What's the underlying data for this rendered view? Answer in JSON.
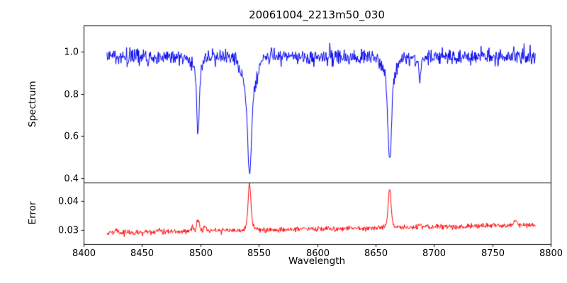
{
  "chart_data": [
    {
      "type": "line",
      "title": "20061004_2213m50_030",
      "ylabel": "Spectrum",
      "color": "#0000ee",
      "xlim": [
        8400,
        8800
      ],
      "ylim": [
        0.38,
        1.124
      ],
      "yticks": [
        0.4,
        0.6,
        0.8,
        1.0
      ],
      "yticklabels": [
        "0.4",
        "0.6",
        "0.8",
        "1.0"
      ],
      "x_start": 8420,
      "x_end": 8787,
      "step": 0.4,
      "baseline": 0.975,
      "noise_sigma": 0.019,
      "absorption_lines": [
        {
          "center": 8498.0,
          "sigma": 1.2,
          "depth": 0.32
        },
        {
          "center": 8498.0,
          "sigma": 4.0,
          "depth": 0.06
        },
        {
          "center": 8542.1,
          "sigma": 1.5,
          "depth": 0.45
        },
        {
          "center": 8542.1,
          "sigma": 5.0,
          "depth": 0.22
        },
        {
          "center": 8662.1,
          "sigma": 1.5,
          "depth": 0.43
        },
        {
          "center": 8662.1,
          "sigma": 4.5,
          "depth": 0.12
        },
        {
          "center": 8688.0,
          "sigma": 0.9,
          "depth": 0.13
        }
      ]
    },
    {
      "type": "line",
      "ylabel": "Error",
      "xlabel": "Wavelength",
      "color": "#ff0000",
      "xlim": [
        8400,
        8800
      ],
      "ylim": [
        0.0251,
        0.0463
      ],
      "yticks": [
        0.03,
        0.04
      ],
      "yticklabels": [
        "0.03",
        "0.04"
      ],
      "xticks": [
        8400,
        8450,
        8500,
        8550,
        8600,
        8650,
        8700,
        8750,
        8800
      ],
      "xticklabels": [
        "8400",
        "8450",
        "8500",
        "8550",
        "8600",
        "8650",
        "8700",
        "8750",
        "8800"
      ],
      "x_start": 8420,
      "x_end": 8787,
      "step": 0.4,
      "baseline_start": 0.029,
      "baseline_end": 0.0317,
      "noise_sigma": 0.00045,
      "peaks": [
        {
          "center": 8428.0,
          "sigma": 1.0,
          "amp": 0.0012
        },
        {
          "center": 8465.0,
          "sigma": 1.0,
          "amp": 0.001
        },
        {
          "center": 8493.0,
          "sigma": 1.0,
          "amp": 0.0014
        },
        {
          "center": 8498.0,
          "sigma": 1.2,
          "amp": 0.0038
        },
        {
          "center": 8504.0,
          "sigma": 0.9,
          "amp": 0.0015
        },
        {
          "center": 8542.1,
          "sigma": 1.2,
          "amp": 0.015
        },
        {
          "center": 8542.1,
          "sigma": 4.0,
          "amp": 0.0012
        },
        {
          "center": 8662.1,
          "sigma": 1.2,
          "amp": 0.0125
        },
        {
          "center": 8662.1,
          "sigma": 4.0,
          "amp": 0.0008
        },
        {
          "center": 8688.0,
          "sigma": 1.0,
          "amp": 0.001
        },
        {
          "center": 8770.0,
          "sigma": 1.2,
          "amp": 0.0018
        }
      ]
    }
  ]
}
